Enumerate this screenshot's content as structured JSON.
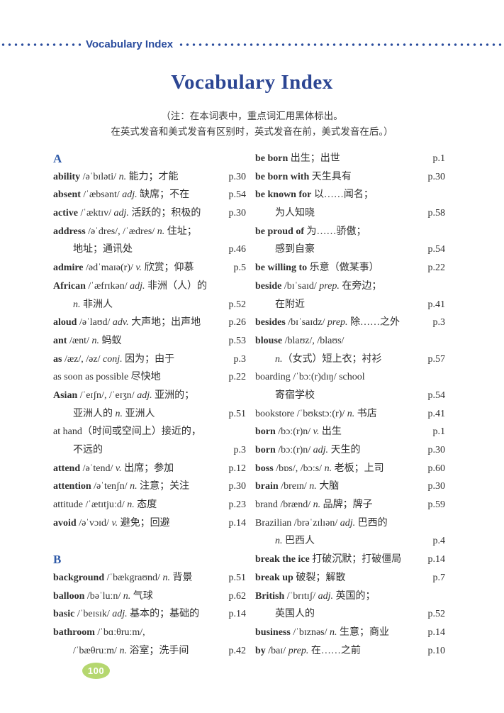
{
  "header": {
    "label": "Vocabulary Index"
  },
  "title": "Vocabulary Index",
  "note": {
    "line1": "（注：在本词表中，重点词汇用黑体标出。",
    "line2": "在英式发音和美式发音有区别时，英式发音在前，美式发音在后。）"
  },
  "footer": {
    "page_number": "100"
  },
  "colors": {
    "accent_blue": "#2b4d9e",
    "title_navy": "#2c4693",
    "section_blue": "#2f5aa8",
    "body_text": "#2f2f2f",
    "badge_green": "#b5d76f"
  },
  "columns": {
    "left": [
      {
        "kind": "section",
        "label": "A"
      },
      {
        "kind": "entry",
        "indent": false,
        "segments": [
          [
            "ability",
            "b"
          ],
          [
            " /əˈbɪləti/ ",
            "r"
          ],
          [
            "n.",
            "i"
          ],
          [
            " 能力；才能",
            "r"
          ]
        ],
        "page": "p.30"
      },
      {
        "kind": "entry",
        "indent": false,
        "segments": [
          [
            "absent",
            "b"
          ],
          [
            " /ˈæbsənt/ ",
            "r"
          ],
          [
            "adj.",
            "i"
          ],
          [
            " 缺席；不在",
            "r"
          ]
        ],
        "page": "p.54"
      },
      {
        "kind": "entry",
        "indent": false,
        "segments": [
          [
            "active",
            "b"
          ],
          [
            " /ˈæktɪv/ ",
            "r"
          ],
          [
            "adj.",
            "i"
          ],
          [
            " 活跃的；积极的",
            "r"
          ]
        ],
        "page": "p.30"
      },
      {
        "kind": "entry",
        "indent": false,
        "segments": [
          [
            "address",
            "b"
          ],
          [
            " /əˈdres/, /ˈædres/ ",
            "r"
          ],
          [
            "n.",
            "i"
          ],
          [
            " 住址；",
            "r"
          ]
        ],
        "page": ""
      },
      {
        "kind": "entry",
        "indent": true,
        "segments": [
          [
            "地址；通讯处",
            "r"
          ]
        ],
        "page": "p.46"
      },
      {
        "kind": "entry",
        "indent": false,
        "segments": [
          [
            "admire",
            "b"
          ],
          [
            " /ədˈmaɪə(r)/ ",
            "r"
          ],
          [
            "v.",
            "i"
          ],
          [
            " 欣赏；仰慕",
            "r"
          ]
        ],
        "page": "p.5"
      },
      {
        "kind": "entry",
        "indent": false,
        "segments": [
          [
            "African",
            "b"
          ],
          [
            " /ˈæfrɪkən/ ",
            "r"
          ],
          [
            "adj.",
            "i"
          ],
          [
            " 非洲（人）的",
            "r"
          ]
        ],
        "page": ""
      },
      {
        "kind": "entry",
        "indent": true,
        "segments": [
          [
            "n.",
            "i"
          ],
          [
            " 非洲人",
            "r"
          ]
        ],
        "page": "p.52"
      },
      {
        "kind": "entry",
        "indent": false,
        "segments": [
          [
            "aloud",
            "b"
          ],
          [
            " /əˈlaʊd/ ",
            "r"
          ],
          [
            "adv.",
            "i"
          ],
          [
            " 大声地；出声地",
            "r"
          ]
        ],
        "page": "p.26"
      },
      {
        "kind": "entry",
        "indent": false,
        "segments": [
          [
            "ant",
            "b"
          ],
          [
            " /ænt/ ",
            "r"
          ],
          [
            "n.",
            "i"
          ],
          [
            " 蚂蚁",
            "r"
          ]
        ],
        "page": "p.53"
      },
      {
        "kind": "entry",
        "indent": false,
        "segments": [
          [
            "as",
            "b"
          ],
          [
            " /æz/, /əz/ ",
            "r"
          ],
          [
            "conj.",
            "i"
          ],
          [
            " 因为；由于",
            "r"
          ]
        ],
        "page": "p.3"
      },
      {
        "kind": "entry",
        "indent": false,
        "segments": [
          [
            "as soon as possible 尽快地",
            "r"
          ]
        ],
        "page": "p.22"
      },
      {
        "kind": "entry",
        "indent": false,
        "segments": [
          [
            "Asian",
            "b"
          ],
          [
            " /ˈeɪʃn/, /ˈeɪʒn/ ",
            "r"
          ],
          [
            "adj.",
            "i"
          ],
          [
            " 亚洲的；",
            "r"
          ]
        ],
        "page": ""
      },
      {
        "kind": "entry",
        "indent": true,
        "segments": [
          [
            "亚洲人的 ",
            "r"
          ],
          [
            "n.",
            "i"
          ],
          [
            " 亚洲人",
            "r"
          ]
        ],
        "page": "p.51"
      },
      {
        "kind": "entry",
        "indent": false,
        "segments": [
          [
            "at hand（时间或空间上）接近的，",
            "r"
          ]
        ],
        "page": ""
      },
      {
        "kind": "entry",
        "indent": true,
        "segments": [
          [
            "不远的",
            "r"
          ]
        ],
        "page": "p.3"
      },
      {
        "kind": "entry",
        "indent": false,
        "segments": [
          [
            "attend",
            "b"
          ],
          [
            " /əˈtend/ ",
            "r"
          ],
          [
            "v.",
            "i"
          ],
          [
            " 出席；参加",
            "r"
          ]
        ],
        "page": "p.12"
      },
      {
        "kind": "entry",
        "indent": false,
        "segments": [
          [
            "attention",
            "b"
          ],
          [
            " /əˈtenʃn/ ",
            "r"
          ],
          [
            "n.",
            "i"
          ],
          [
            " 注意；关注",
            "r"
          ]
        ],
        "page": "p.30"
      },
      {
        "kind": "entry",
        "indent": false,
        "segments": [
          [
            "attitude /ˈætɪtjuːd/ ",
            "r"
          ],
          [
            "n.",
            "i"
          ],
          [
            " 态度",
            "r"
          ]
        ],
        "page": "p.23"
      },
      {
        "kind": "entry",
        "indent": false,
        "segments": [
          [
            "avoid",
            "b"
          ],
          [
            " /əˈvɔɪd/ ",
            "r"
          ],
          [
            "v.",
            "i"
          ],
          [
            " 避免；回避",
            "r"
          ]
        ],
        "page": "p.14"
      },
      {
        "kind": "blank"
      },
      {
        "kind": "section",
        "label": "B"
      },
      {
        "kind": "entry",
        "indent": false,
        "segments": [
          [
            "background",
            "b"
          ],
          [
            " /ˈbækgraʊnd/ ",
            "r"
          ],
          [
            "n.",
            "i"
          ],
          [
            " 背景",
            "r"
          ]
        ],
        "page": "p.51"
      },
      {
        "kind": "entry",
        "indent": false,
        "segments": [
          [
            "balloon",
            "b"
          ],
          [
            " /bəˈluːn/ ",
            "r"
          ],
          [
            "n.",
            "i"
          ],
          [
            " 气球",
            "r"
          ]
        ],
        "page": "p.62"
      },
      {
        "kind": "entry",
        "indent": false,
        "segments": [
          [
            "basic",
            "b"
          ],
          [
            " /ˈbeɪsɪk/ ",
            "r"
          ],
          [
            "adj.",
            "i"
          ],
          [
            " 基本的；基础的",
            "r"
          ]
        ],
        "page": "p.14"
      },
      {
        "kind": "entry",
        "indent": false,
        "segments": [
          [
            "bathroom",
            "b"
          ],
          [
            " /ˈbɑːθruːm/,",
            "r"
          ]
        ],
        "page": ""
      },
      {
        "kind": "entry",
        "indent": true,
        "segments": [
          [
            "/ˈbæθruːm/ ",
            "r"
          ],
          [
            "n.",
            "i"
          ],
          [
            " 浴室；洗手间",
            "r"
          ]
        ],
        "page": "p.42"
      }
    ],
    "right": [
      {
        "kind": "entry",
        "indent": false,
        "segments": [
          [
            "be born",
            "b"
          ],
          [
            " 出生；出世",
            "r"
          ]
        ],
        "page": "p.1"
      },
      {
        "kind": "entry",
        "indent": false,
        "segments": [
          [
            "be born with",
            "b"
          ],
          [
            " 天生具有",
            "r"
          ]
        ],
        "page": "p.30"
      },
      {
        "kind": "entry",
        "indent": false,
        "segments": [
          [
            "be known for",
            "b"
          ],
          [
            " 以……闻名；",
            "r"
          ]
        ],
        "page": ""
      },
      {
        "kind": "entry",
        "indent": true,
        "segments": [
          [
            "为人知晓",
            "r"
          ]
        ],
        "page": "p.58"
      },
      {
        "kind": "entry",
        "indent": false,
        "segments": [
          [
            "be proud of",
            "b"
          ],
          [
            " 为……骄傲；",
            "r"
          ]
        ],
        "page": ""
      },
      {
        "kind": "entry",
        "indent": true,
        "segments": [
          [
            "感到自豪",
            "r"
          ]
        ],
        "page": "p.54"
      },
      {
        "kind": "entry",
        "indent": false,
        "segments": [
          [
            "be willing to",
            "b"
          ],
          [
            " 乐意（做某事）",
            "r"
          ]
        ],
        "page": "p.22"
      },
      {
        "kind": "entry",
        "indent": false,
        "segments": [
          [
            "beside",
            "b"
          ],
          [
            " /bɪˈsaɪd/ ",
            "r"
          ],
          [
            "prep.",
            "i"
          ],
          [
            " 在旁边；",
            "r"
          ]
        ],
        "page": ""
      },
      {
        "kind": "entry",
        "indent": true,
        "segments": [
          [
            "在附近",
            "r"
          ]
        ],
        "page": "p.41"
      },
      {
        "kind": "entry",
        "indent": false,
        "segments": [
          [
            "besides",
            "b"
          ],
          [
            " /bɪˈsaɪdz/ ",
            "r"
          ],
          [
            "prep.",
            "i"
          ],
          [
            " 除……之外",
            "r"
          ]
        ],
        "page": "p.3"
      },
      {
        "kind": "entry",
        "indent": false,
        "segments": [
          [
            "blouse",
            "b"
          ],
          [
            " /blaʊz/, /blaʊs/",
            "r"
          ]
        ],
        "page": ""
      },
      {
        "kind": "entry",
        "indent": true,
        "segments": [
          [
            "n.",
            "i"
          ],
          [
            "（女式）短上衣；衬衫",
            "r"
          ]
        ],
        "page": "p.57"
      },
      {
        "kind": "entry",
        "indent": false,
        "segments": [
          [
            "boarding /ˈbɔː(r)dɪŋ/ school",
            "r"
          ]
        ],
        "page": ""
      },
      {
        "kind": "entry",
        "indent": true,
        "segments": [
          [
            "寄宿学校",
            "r"
          ]
        ],
        "page": "p.54"
      },
      {
        "kind": "entry",
        "indent": false,
        "segments": [
          [
            "bookstore /ˈbʊkstɔː(r)/ ",
            "r"
          ],
          [
            "n.",
            "i"
          ],
          [
            " 书店",
            "r"
          ]
        ],
        "page": "p.41"
      },
      {
        "kind": "entry",
        "indent": false,
        "segments": [
          [
            "born",
            "b"
          ],
          [
            " /bɔː(r)n/ ",
            "r"
          ],
          [
            "v.",
            "i"
          ],
          [
            " 出生",
            "r"
          ]
        ],
        "page": "p.1"
      },
      {
        "kind": "entry",
        "indent": false,
        "segments": [
          [
            "born",
            "b"
          ],
          [
            " /bɔː(r)n/ ",
            "r"
          ],
          [
            "adj.",
            "i"
          ],
          [
            " 天生的",
            "r"
          ]
        ],
        "page": "p.30"
      },
      {
        "kind": "entry",
        "indent": false,
        "segments": [
          [
            "boss",
            "b"
          ],
          [
            " /bɒs/, /bɔːs/ ",
            "r"
          ],
          [
            "n.",
            "i"
          ],
          [
            " 老板；上司",
            "r"
          ]
        ],
        "page": "p.60"
      },
      {
        "kind": "entry",
        "indent": false,
        "segments": [
          [
            "brain",
            "b"
          ],
          [
            " /breɪn/ ",
            "r"
          ],
          [
            "n.",
            "i"
          ],
          [
            " 大脑",
            "r"
          ]
        ],
        "page": "p.30"
      },
      {
        "kind": "entry",
        "indent": false,
        "segments": [
          [
            "brand /brænd/ ",
            "r"
          ],
          [
            "n.",
            "i"
          ],
          [
            " 品牌；牌子",
            "r"
          ]
        ],
        "page": "p.59"
      },
      {
        "kind": "entry",
        "indent": false,
        "segments": [
          [
            "Brazilian /brəˈzɪlɪən/ ",
            "r"
          ],
          [
            "adj.",
            "i"
          ],
          [
            " 巴西的",
            "r"
          ]
        ],
        "page": ""
      },
      {
        "kind": "entry",
        "indent": true,
        "segments": [
          [
            "n.",
            "i"
          ],
          [
            " 巴西人",
            "r"
          ]
        ],
        "page": "p.4"
      },
      {
        "kind": "entry",
        "indent": false,
        "segments": [
          [
            "break the ice",
            "b"
          ],
          [
            " 打破沉默；打破僵局",
            "r"
          ]
        ],
        "page": "p.14"
      },
      {
        "kind": "entry",
        "indent": false,
        "segments": [
          [
            "break up",
            "b"
          ],
          [
            " 破裂；解散",
            "r"
          ]
        ],
        "page": "p.7"
      },
      {
        "kind": "entry",
        "indent": false,
        "segments": [
          [
            "British",
            "b"
          ],
          [
            " /ˈbrɪtɪʃ/ ",
            "r"
          ],
          [
            "adj.",
            "i"
          ],
          [
            " 英国的；",
            "r"
          ]
        ],
        "page": ""
      },
      {
        "kind": "entry",
        "indent": true,
        "segments": [
          [
            "英国人的",
            "r"
          ]
        ],
        "page": "p.52"
      },
      {
        "kind": "entry",
        "indent": false,
        "segments": [
          [
            "business",
            "b"
          ],
          [
            " /ˈbɪznəs/ ",
            "r"
          ],
          [
            "n.",
            "i"
          ],
          [
            " 生意；商业",
            "r"
          ]
        ],
        "page": "p.14"
      },
      {
        "kind": "entry",
        "indent": false,
        "segments": [
          [
            "by",
            "b"
          ],
          [
            " /baɪ/ ",
            "r"
          ],
          [
            "prep.",
            "i"
          ],
          [
            " 在……之前",
            "r"
          ]
        ],
        "page": "p.10"
      }
    ]
  }
}
